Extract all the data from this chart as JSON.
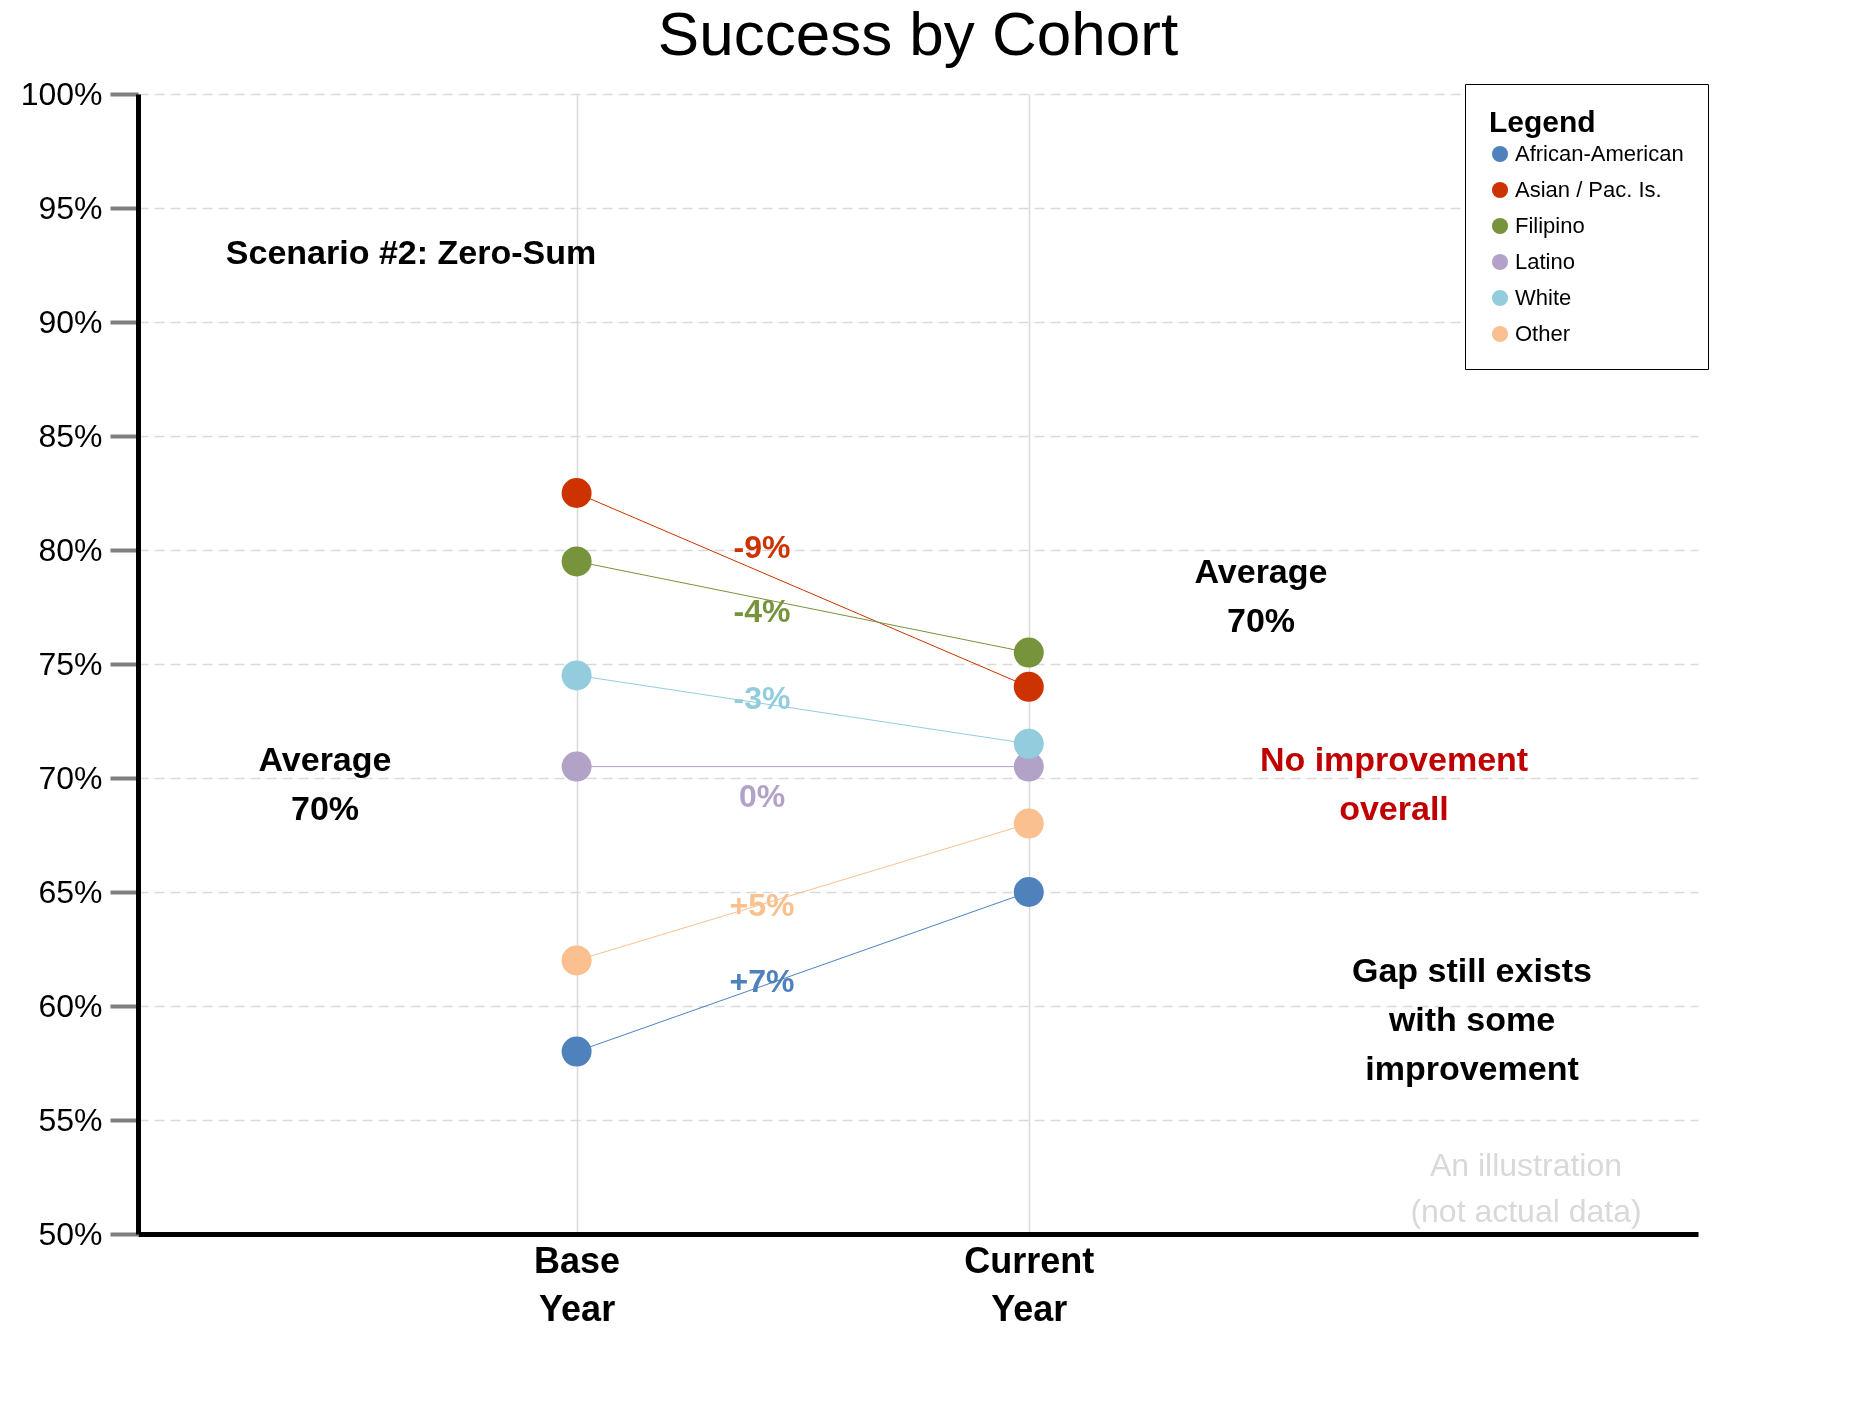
{
  "chart_data": {
    "type": "line",
    "title": "Success by Cohort",
    "categories": [
      "Base Year",
      "Current Year"
    ],
    "series": [
      {
        "name": "African-American",
        "color": "#4f81bd",
        "values": [
          58,
          65
        ]
      },
      {
        "name": "Asian / Pac. Is.",
        "color": "#cc3300",
        "values": [
          82.5,
          74
        ]
      },
      {
        "name": "Filipino",
        "color": "#77933c",
        "values": [
          79.5,
          75.5
        ]
      },
      {
        "name": "Latino",
        "color": "#b3a2c7",
        "values": [
          70.5,
          70.5
        ]
      },
      {
        "name": "White",
        "color": "#93cddd",
        "values": [
          74.5,
          71.5
        ]
      },
      {
        "name": "Other",
        "color": "#fac090",
        "values": [
          62,
          68
        ]
      }
    ],
    "ylim": [
      50,
      100
    ],
    "yticks": [
      {
        "value": 50,
        "label": "50%"
      },
      {
        "value": 55,
        "label": "55%"
      },
      {
        "value": 60,
        "label": "60%"
      },
      {
        "value": 65,
        "label": "65%"
      },
      {
        "value": 70,
        "label": "70%"
      },
      {
        "value": 75,
        "label": "75%"
      },
      {
        "value": 80,
        "label": "80%"
      },
      {
        "value": 85,
        "label": "85%"
      },
      {
        "value": 90,
        "label": "90%"
      },
      {
        "value": 95,
        "label": "95%"
      },
      {
        "value": 100,
        "label": "100%"
      }
    ],
    "legend_title": "Legend",
    "legend": "top right",
    "grid": true,
    "marker": "circle",
    "line_style": "solid",
    "annotations": [
      "-9%",
      "-4%",
      "-3%",
      "0%",
      "+5%",
      "+7%",
      "Scenario #2: Zero-Sum",
      "Average\n70%",
      "Average\n70%",
      "No improvement\noverall",
      "Gap still exists\nwith some\nimprovement",
      "An illustration\n(not actual data)"
    ]
  }
}
